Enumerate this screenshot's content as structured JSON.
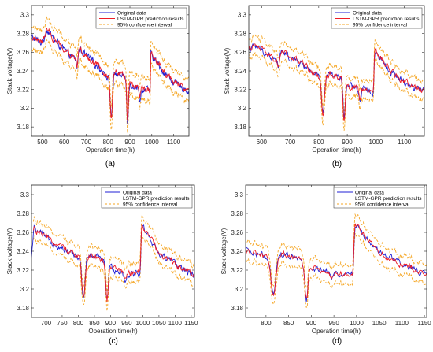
{
  "figure": {
    "caption_labels": [
      "(a)",
      "(b)",
      "(c)",
      "(d)"
    ]
  },
  "colors": {
    "original": "#1f1fd6",
    "prediction": "#ee1c25",
    "confidence": "#f5a623",
    "axis": "#262626"
  },
  "legend": {
    "original": "Original data",
    "prediction": "LSTM-GPR prediction results",
    "confidence": "95% confidence interval"
  },
  "chart_data": [
    {
      "type": "line",
      "xlabel": "Operation time(h)",
      "ylabel": "Stack voltage(V)",
      "xlim": [
        450,
        1170
      ],
      "ylim": [
        3.17,
        3.31
      ],
      "xticks": [
        500,
        600,
        700,
        800,
        900,
        1000,
        1100
      ],
      "yticks": [
        3.18,
        3.2,
        3.22,
        3.24,
        3.26,
        3.28,
        3.3
      ],
      "x_start": 450,
      "pred_start": 450,
      "legend_position": "top-right",
      "ci_width": 0.012,
      "trend": [
        [
          450,
          3.276
        ],
        [
          500,
          3.27
        ],
        [
          520,
          3.284
        ],
        [
          560,
          3.272
        ],
        [
          600,
          3.262
        ],
        [
          650,
          3.252
        ],
        [
          660,
          3.266
        ],
        [
          700,
          3.256
        ],
        [
          750,
          3.246
        ],
        [
          790,
          3.236
        ],
        [
          805,
          3.232
        ],
        [
          820,
          3.234
        ],
        [
          840,
          3.238
        ],
        [
          880,
          3.232
        ],
        [
          895,
          3.226
        ],
        [
          920,
          3.224
        ],
        [
          960,
          3.22
        ],
        [
          992,
          3.219
        ],
        [
          996,
          3.258
        ],
        [
          1050,
          3.24
        ],
        [
          1100,
          3.228
        ],
        [
          1140,
          3.222
        ],
        [
          1170,
          3.218
        ]
      ],
      "dips": [
        [
          659,
          3.244,
          5
        ],
        [
          815,
          3.19,
          7
        ],
        [
          889,
          3.185,
          5
        ],
        [
          945,
          3.208,
          5
        ]
      ]
    },
    {
      "type": "line",
      "xlabel": "Operation time(h)",
      "ylabel": "Stack voltage(V)",
      "xlim": [
        555,
        1170
      ],
      "ylim": [
        3.17,
        3.31
      ],
      "xticks": [
        600,
        700,
        800,
        900,
        1000,
        1100
      ],
      "yticks": [
        3.18,
        3.2,
        3.22,
        3.24,
        3.26,
        3.28,
        3.3
      ],
      "x_start": 555,
      "pred_start": 555,
      "legend_position": "top-right",
      "ci_width": 0.01,
      "trend": [
        [
          555,
          3.264
        ],
        [
          580,
          3.266
        ],
        [
          620,
          3.258
        ],
        [
          650,
          3.25
        ],
        [
          660,
          3.262
        ],
        [
          700,
          3.254
        ],
        [
          750,
          3.246
        ],
        [
          790,
          3.236
        ],
        [
          805,
          3.232
        ],
        [
          820,
          3.233
        ],
        [
          840,
          3.237
        ],
        [
          880,
          3.231
        ],
        [
          895,
          3.225
        ],
        [
          920,
          3.222
        ],
        [
          960,
          3.219
        ],
        [
          992,
          3.217
        ],
        [
          996,
          3.262
        ],
        [
          1050,
          3.24
        ],
        [
          1100,
          3.228
        ],
        [
          1140,
          3.221
        ],
        [
          1170,
          3.218
        ]
      ],
      "dips": [
        [
          659,
          3.244,
          5
        ],
        [
          815,
          3.193,
          7
        ],
        [
          889,
          3.187,
          5
        ],
        [
          945,
          3.208,
          5
        ]
      ]
    },
    {
      "type": "line",
      "xlabel": "Operation time(h)",
      "ylabel": "Stack voltage(V)",
      "xlim": [
        655,
        1160
      ],
      "ylim": [
        3.17,
        3.31
      ],
      "xticks": [
        700,
        750,
        800,
        850,
        900,
        950,
        1000,
        1050,
        1100,
        1150
      ],
      "yticks": [
        3.18,
        3.2,
        3.22,
        3.24,
        3.26,
        3.28,
        3.3
      ],
      "x_start": 655,
      "pred_start": 660,
      "legend_position": "top-right",
      "ci_width": 0.01,
      "trend": [
        [
          655,
          3.232
        ],
        [
          662,
          3.264
        ],
        [
          700,
          3.254
        ],
        [
          750,
          3.244
        ],
        [
          790,
          3.236
        ],
        [
          805,
          3.232
        ],
        [
          820,
          3.232
        ],
        [
          840,
          3.236
        ],
        [
          880,
          3.23
        ],
        [
          895,
          3.224
        ],
        [
          920,
          3.22
        ],
        [
          960,
          3.216
        ],
        [
          992,
          3.216
        ],
        [
          996,
          3.268
        ],
        [
          1050,
          3.238
        ],
        [
          1100,
          3.226
        ],
        [
          1140,
          3.218
        ],
        [
          1160,
          3.214
        ]
      ],
      "dips": [
        [
          816,
          3.192,
          7
        ],
        [
          889,
          3.187,
          5
        ],
        [
          945,
          3.208,
          5
        ]
      ]
    },
    {
      "type": "line",
      "xlabel": "Operation time(h)",
      "ylabel": "Stack voltage(V)",
      "xlim": [
        755,
        1155
      ],
      "ylim": [
        3.17,
        3.31
      ],
      "xticks": [
        800,
        850,
        900,
        950,
        1000,
        1050,
        1100,
        1150
      ],
      "yticks": [
        3.18,
        3.2,
        3.22,
        3.24,
        3.26,
        3.28,
        3.3
      ],
      "x_start": 755,
      "pred_start": 755,
      "legend_position": "top-right",
      "ci_width": 0.01,
      "trend": [
        [
          755,
          3.24
        ],
        [
          790,
          3.236
        ],
        [
          805,
          3.232
        ],
        [
          820,
          3.232
        ],
        [
          840,
          3.236
        ],
        [
          880,
          3.23
        ],
        [
          895,
          3.224
        ],
        [
          920,
          3.22
        ],
        [
          960,
          3.216
        ],
        [
          992,
          3.216
        ],
        [
          996,
          3.268
        ],
        [
          1050,
          3.238
        ],
        [
          1100,
          3.226
        ],
        [
          1140,
          3.218
        ],
        [
          1155,
          3.214
        ]
      ],
      "dips": [
        [
          816,
          3.192,
          7
        ],
        [
          889,
          3.186,
          5
        ],
        [
          945,
          3.208,
          5
        ]
      ]
    }
  ]
}
